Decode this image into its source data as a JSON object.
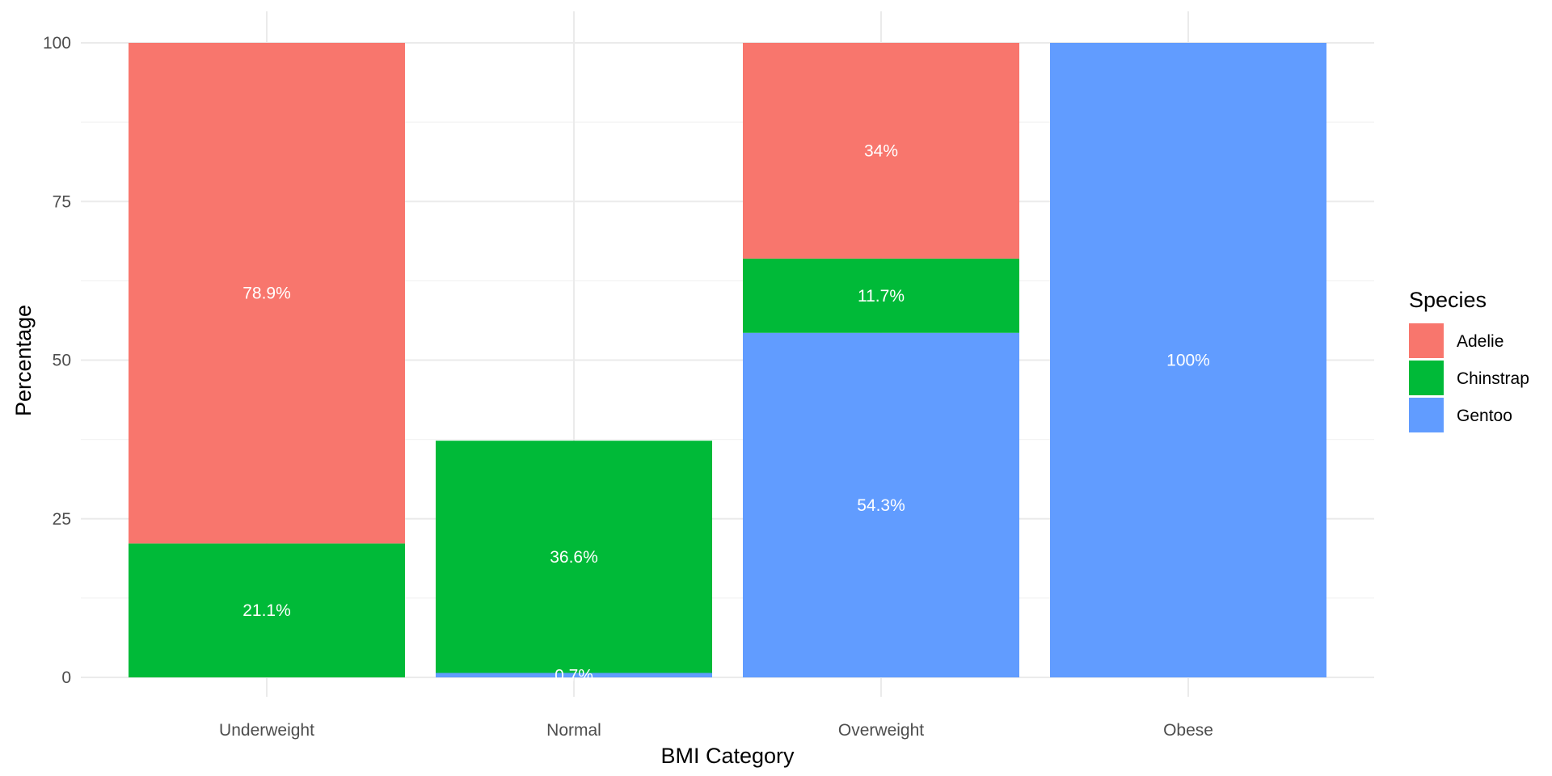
{
  "chart_data": {
    "type": "bar",
    "stacked": true,
    "categories": [
      "Underweight",
      "Normal",
      "Overweight",
      "Obese"
    ],
    "xlabel": "BMI Category",
    "ylabel": "Percentage",
    "ylim": [
      0,
      100
    ],
    "yticks": [
      0,
      25,
      50,
      75,
      100
    ],
    "grid": true,
    "legend": {
      "title": "Species",
      "position": "right"
    },
    "series": [
      {
        "name": "Gentoo",
        "color": "#619CFF",
        "values": [
          0,
          0.7,
          54.3,
          100
        ],
        "labels": [
          "",
          "0.7%",
          "54.3%",
          "100%"
        ]
      },
      {
        "name": "Chinstrap",
        "color": "#00BA38",
        "values": [
          21.1,
          36.6,
          11.7,
          0
        ],
        "labels": [
          "21.1%",
          "36.6%",
          "11.7%",
          ""
        ]
      },
      {
        "name": "Adelie",
        "color": "#F8766D",
        "values": [
          78.9,
          0,
          34.0,
          0
        ],
        "labels": [
          "78.9%",
          "",
          "34%",
          ""
        ]
      }
    ],
    "legend_order": [
      "Adelie",
      "Chinstrap",
      "Gentoo"
    ]
  }
}
